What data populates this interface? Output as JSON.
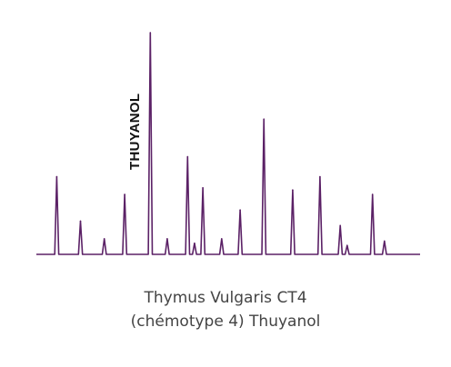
{
  "chart_data": {
    "type": "line",
    "description_style": "chromatogram",
    "colors": {
      "trace": "#5b2166",
      "label": "#111111",
      "caption": "#444444"
    },
    "xlim": [
      0,
      100
    ],
    "ylim": [
      0,
      100
    ],
    "peaks": [
      {
        "x": 5.3,
        "y": 35
      },
      {
        "x": 11.5,
        "y": 15
      },
      {
        "x": 17.7,
        "y": 7
      },
      {
        "x": 23.0,
        "y": 27
      },
      {
        "x": 29.7,
        "y": 100
      },
      {
        "x": 34.1,
        "y": 7
      },
      {
        "x": 39.4,
        "y": 44
      },
      {
        "x": 41.2,
        "y": 5
      },
      {
        "x": 43.4,
        "y": 30
      },
      {
        "x": 48.3,
        "y": 7
      },
      {
        "x": 53.1,
        "y": 20
      },
      {
        "x": 59.3,
        "y": 61
      },
      {
        "x": 66.8,
        "y": 29
      },
      {
        "x": 73.9,
        "y": 35
      },
      {
        "x": 79.2,
        "y": 13
      },
      {
        "x": 81.0,
        "y": 4
      },
      {
        "x": 87.6,
        "y": 27
      },
      {
        "x": 90.7,
        "y": 6
      }
    ],
    "annotations": [
      {
        "text": "THUYANOL",
        "peak_index": 4
      }
    ]
  },
  "caption": {
    "line1": "Thymus Vulgaris CT4",
    "line2": "(chémotype 4) Thuyanol"
  }
}
